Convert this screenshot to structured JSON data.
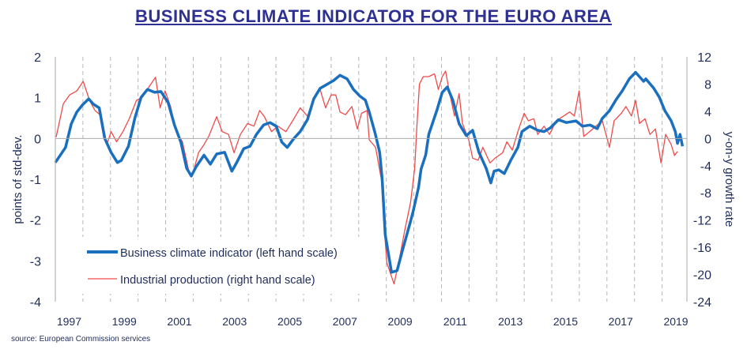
{
  "chart_data": {
    "type": "line",
    "title": "BUSINESS CLIMATE INDICATOR FOR THE EURO AREA",
    "source": "source: European Commission services",
    "ylabel_left": "points of std-dev.",
    "ylabel_right": "y-on-y growth rate",
    "xlim": [
      1997,
      2019.9
    ],
    "ylim_left": [
      -4,
      2
    ],
    "ylim_right": [
      -24,
      12
    ],
    "yticks_left": [
      "2",
      "1",
      "0",
      "-1",
      "-2",
      "-3",
      "-4"
    ],
    "yticks_right": [
      "12",
      "8",
      "4",
      "0",
      "-4",
      "-8",
      "-12",
      "-16",
      "-20",
      "-24"
    ],
    "xticks": [
      "1997",
      "1999",
      "2001",
      "2003",
      "2005",
      "2007",
      "2009",
      "2011",
      "2013",
      "2015",
      "2017",
      "2019"
    ],
    "grid": "vertical dashed yearly",
    "legend_position": "bottom-left",
    "series": [
      {
        "name": "Business climate indicator (left hand scale)",
        "axis": "left",
        "color": "#1a6fbf",
        "points": [
          [
            1997.0,
            -0.59
          ],
          [
            1997.37,
            -0.22
          ],
          [
            1997.58,
            0.36
          ],
          [
            1997.78,
            0.65
          ],
          [
            1997.98,
            0.82
          ],
          [
            1998.21,
            0.97
          ],
          [
            1998.38,
            0.84
          ],
          [
            1998.59,
            0.75
          ],
          [
            1998.79,
            0.0
          ],
          [
            1999.02,
            -0.34
          ],
          [
            1999.25,
            -0.59
          ],
          [
            1999.39,
            -0.54
          ],
          [
            1999.65,
            -0.19
          ],
          [
            1999.88,
            0.49
          ],
          [
            2000.11,
            1.01
          ],
          [
            2000.34,
            1.2
          ],
          [
            2000.6,
            1.13
          ],
          [
            2000.83,
            1.15
          ],
          [
            2001.09,
            0.88
          ],
          [
            2001.32,
            0.33
          ],
          [
            2001.55,
            -0.09
          ],
          [
            2001.76,
            -0.73
          ],
          [
            2001.93,
            -0.92
          ],
          [
            2002.1,
            -0.7
          ],
          [
            2002.39,
            -0.41
          ],
          [
            2002.62,
            -0.63
          ],
          [
            2002.85,
            -0.38
          ],
          [
            2003.14,
            -0.34
          ],
          [
            2003.4,
            -0.8
          ],
          [
            2003.57,
            -0.6
          ],
          [
            2003.83,
            -0.25
          ],
          [
            2004.06,
            -0.19
          ],
          [
            2004.29,
            0.1
          ],
          [
            2004.55,
            0.33
          ],
          [
            2004.78,
            0.39
          ],
          [
            2005.01,
            0.3
          ],
          [
            2005.21,
            -0.09
          ],
          [
            2005.41,
            -0.22
          ],
          [
            2005.65,
            0.0
          ],
          [
            2005.88,
            0.17
          ],
          [
            2006.14,
            0.46
          ],
          [
            2006.37,
            0.97
          ],
          [
            2006.6,
            1.23
          ],
          [
            2006.86,
            1.33
          ],
          [
            2007.09,
            1.42
          ],
          [
            2007.32,
            1.55
          ],
          [
            2007.58,
            1.46
          ],
          [
            2007.81,
            1.2
          ],
          [
            2008.04,
            1.04
          ],
          [
            2008.24,
            0.94
          ],
          [
            2008.38,
            0.65
          ],
          [
            2008.59,
            0.14
          ],
          [
            2008.76,
            -0.34
          ],
          [
            2008.85,
            -1.0
          ],
          [
            2008.96,
            -2.35
          ],
          [
            2009.19,
            -3.28
          ],
          [
            2009.39,
            -3.24
          ],
          [
            2009.62,
            -2.66
          ],
          [
            2009.88,
            -2.03
          ],
          [
            2009.97,
            -1.8
          ],
          [
            2010.17,
            -1.2
          ],
          [
            2010.26,
            -0.75
          ],
          [
            2010.43,
            -0.4
          ],
          [
            2010.54,
            0.1
          ],
          [
            2010.83,
            0.68
          ],
          [
            2011.03,
            1.13
          ],
          [
            2011.21,
            1.26
          ],
          [
            2011.41,
            0.94
          ],
          [
            2011.64,
            0.36
          ],
          [
            2011.9,
            0.07
          ],
          [
            2012.13,
            0.2
          ],
          [
            2012.36,
            -0.34
          ],
          [
            2012.62,
            -0.73
          ],
          [
            2012.79,
            -1.09
          ],
          [
            2012.91,
            -0.8
          ],
          [
            2013.08,
            -0.77
          ],
          [
            2013.28,
            -0.86
          ],
          [
            2013.51,
            -0.54
          ],
          [
            2013.77,
            -0.22
          ],
          [
            2013.92,
            0.17
          ],
          [
            2014.2,
            0.3
          ],
          [
            2014.49,
            0.2
          ],
          [
            2014.72,
            0.17
          ],
          [
            2014.95,
            0.26
          ],
          [
            2015.24,
            0.46
          ],
          [
            2015.53,
            0.39
          ],
          [
            2015.88,
            0.43
          ],
          [
            2016.11,
            0.3
          ],
          [
            2016.39,
            0.33
          ],
          [
            2016.65,
            0.24
          ],
          [
            2016.83,
            0.49
          ],
          [
            2017.09,
            0.68
          ],
          [
            2017.32,
            0.94
          ],
          [
            2017.55,
            1.16
          ],
          [
            2017.81,
            1.46
          ],
          [
            2018.04,
            1.62
          ],
          [
            2018.33,
            1.4
          ],
          [
            2018.41,
            1.46
          ],
          [
            2018.7,
            1.23
          ],
          [
            2018.9,
            1.01
          ],
          [
            2019.1,
            0.68
          ],
          [
            2019.33,
            0.43
          ],
          [
            2019.48,
            0.17
          ],
          [
            2019.56,
            -0.12
          ],
          [
            2019.65,
            0.1
          ],
          [
            2019.74,
            -0.19
          ]
        ]
      },
      {
        "name": "Industrial production (right hand scale)",
        "axis": "right",
        "color": "#f04a4a",
        "points": [
          [
            1997.03,
            0.2
          ],
          [
            1997.29,
            5.1
          ],
          [
            1997.52,
            6.4
          ],
          [
            1997.78,
            7.0
          ],
          [
            1998.01,
            8.4
          ],
          [
            1998.24,
            5.6
          ],
          [
            1998.44,
            4.1
          ],
          [
            1998.67,
            3.3
          ],
          [
            1998.87,
            -0.9
          ],
          [
            1999.02,
            1.0
          ],
          [
            1999.22,
            -0.5
          ],
          [
            1999.45,
            1.0
          ],
          [
            1999.68,
            2.9
          ],
          [
            1999.94,
            5.6
          ],
          [
            2000.17,
            6.1
          ],
          [
            2000.4,
            7.6
          ],
          [
            2000.63,
            9.0
          ],
          [
            2000.8,
            4.5
          ],
          [
            2000.98,
            7.0
          ],
          [
            2001.18,
            4.7
          ],
          [
            2001.38,
            1.0
          ],
          [
            2001.61,
            -0.5
          ],
          [
            2001.84,
            -4.8
          ],
          [
            2001.96,
            -5.5
          ],
          [
            2002.19,
            -2.1
          ],
          [
            2002.39,
            -0.9
          ],
          [
            2002.56,
            0.3
          ],
          [
            2002.85,
            3.2
          ],
          [
            2003.05,
            1.0
          ],
          [
            2003.28,
            0.6
          ],
          [
            2003.48,
            -2.1
          ],
          [
            2003.71,
            0.6
          ],
          [
            2003.97,
            2.2
          ],
          [
            2004.2,
            1.8
          ],
          [
            2004.41,
            4.1
          ],
          [
            2004.58,
            3.2
          ],
          [
            2004.84,
            1.0
          ],
          [
            2005.07,
            1.8
          ],
          [
            2005.36,
            1.0
          ],
          [
            2005.65,
            2.9
          ],
          [
            2005.88,
            4.5
          ],
          [
            2006.14,
            3.3
          ],
          [
            2006.37,
            5.6
          ],
          [
            2006.6,
            7.2
          ],
          [
            2006.8,
            4.5
          ],
          [
            2007.0,
            6.4
          ],
          [
            2007.17,
            6.4
          ],
          [
            2007.32,
            3.9
          ],
          [
            2007.52,
            3.5
          ],
          [
            2007.75,
            4.7
          ],
          [
            2007.95,
            1.4
          ],
          [
            2008.1,
            3.7
          ],
          [
            2008.3,
            4.1
          ],
          [
            2008.38,
            -0.2
          ],
          [
            2008.61,
            -1.3
          ],
          [
            2008.82,
            -6.0
          ],
          [
            2008.93,
            -13.3
          ],
          [
            2009.02,
            -18.3
          ],
          [
            2009.28,
            -21.4
          ],
          [
            2009.48,
            -17.6
          ],
          [
            2009.68,
            -13.3
          ],
          [
            2009.88,
            -9.4
          ],
          [
            2010.03,
            -4.4
          ],
          [
            2010.11,
            1.8
          ],
          [
            2010.2,
            8.0
          ],
          [
            2010.34,
            9.1
          ],
          [
            2010.54,
            9.1
          ],
          [
            2010.75,
            9.5
          ],
          [
            2010.89,
            7.2
          ],
          [
            2011.03,
            9.1
          ],
          [
            2011.15,
            9.9
          ],
          [
            2011.27,
            7.2
          ],
          [
            2011.47,
            3.3
          ],
          [
            2011.64,
            6.6
          ],
          [
            2011.76,
            2.2
          ],
          [
            2011.99,
            -0.2
          ],
          [
            2012.13,
            -2.9
          ],
          [
            2012.33,
            -3.2
          ],
          [
            2012.5,
            -1.3
          ],
          [
            2012.76,
            -3.6
          ],
          [
            2012.94,
            -2.9
          ],
          [
            2013.08,
            -2.5
          ],
          [
            2013.22,
            -2.1
          ],
          [
            2013.37,
            -0.5
          ],
          [
            2013.57,
            -1.7
          ],
          [
            2013.8,
            1.4
          ],
          [
            2014.0,
            3.7
          ],
          [
            2014.15,
            2.6
          ],
          [
            2014.35,
            2.9
          ],
          [
            2014.49,
            0.6
          ],
          [
            2014.72,
            1.8
          ],
          [
            2014.92,
            0.6
          ],
          [
            2015.16,
            2.6
          ],
          [
            2015.39,
            3.2
          ],
          [
            2015.65,
            3.9
          ],
          [
            2015.82,
            3.3
          ],
          [
            2015.99,
            7.0
          ],
          [
            2016.16,
            0.3
          ],
          [
            2016.37,
            1.0
          ],
          [
            2016.6,
            1.8
          ],
          [
            2016.83,
            2.6
          ],
          [
            2017.09,
            -1.3
          ],
          [
            2017.26,
            2.6
          ],
          [
            2017.52,
            3.7
          ],
          [
            2017.69,
            4.7
          ],
          [
            2017.89,
            3.3
          ],
          [
            2018.04,
            5.6
          ],
          [
            2018.18,
            2.2
          ],
          [
            2018.38,
            2.9
          ],
          [
            2018.56,
            0.6
          ],
          [
            2018.76,
            1.4
          ],
          [
            2018.96,
            -3.6
          ],
          [
            2019.13,
            0.6
          ],
          [
            2019.33,
            -0.9
          ],
          [
            2019.45,
            -2.5
          ],
          [
            2019.56,
            -1.9
          ]
        ]
      }
    ]
  }
}
